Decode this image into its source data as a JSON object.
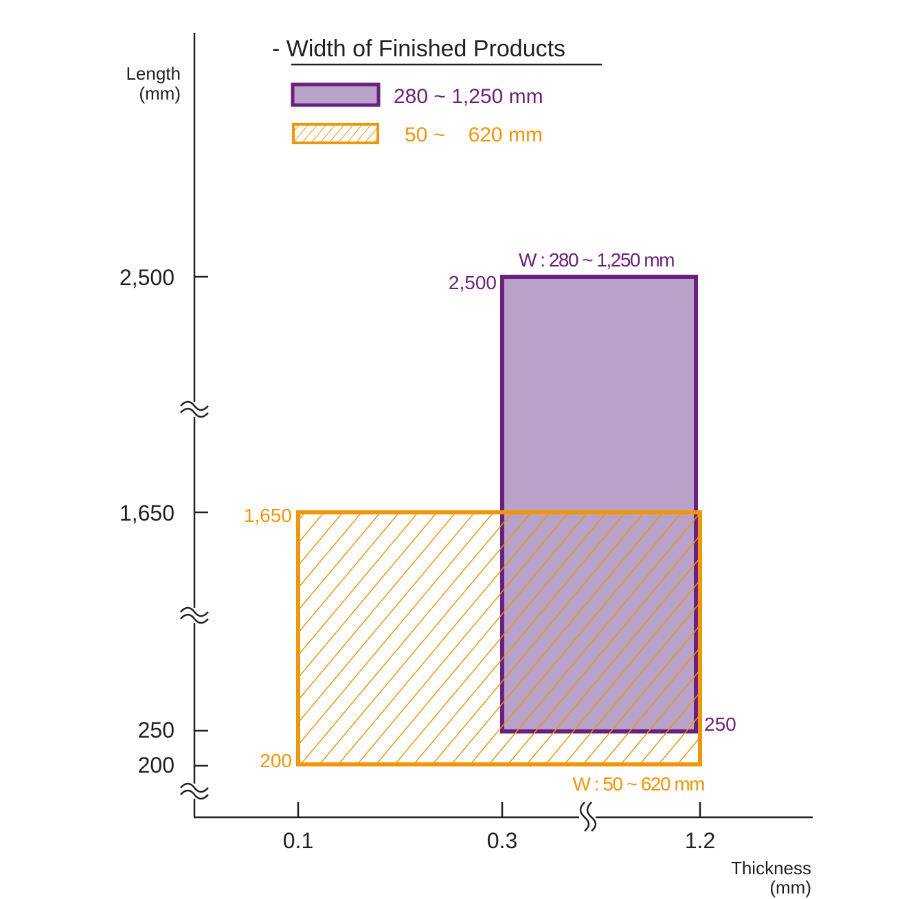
{
  "chart_data": {
    "type": "area",
    "title": "- Width of Finished Products",
    "xlabel": [
      "Thickness",
      "(mm)"
    ],
    "ylabel": [
      "Length",
      "(mm)"
    ],
    "x_ticks": [
      "0.1",
      "0.3",
      "1.2"
    ],
    "y_ticks": [
      "2,500",
      "1,650",
      "250",
      "200"
    ],
    "axis_breaks": "both axes broken (wavy break marks)",
    "legend": {
      "placement": "top",
      "entries": [
        {
          "label": "280 ~ 1,250 mm",
          "style": "solid-fill",
          "color": "#6b1f7e",
          "fill": "#b8a2ca"
        },
        {
          "label": "50 ~    620 mm",
          "style": "hatched",
          "color": "#f0960a"
        }
      ]
    },
    "series": [
      {
        "name": "280 ~ 1,250 mm",
        "thickness_range": [
          0.3,
          1.2
        ],
        "length_range": [
          250,
          2500
        ],
        "label": "W : 280 ~ 1,250 mm",
        "corner_labels": {
          "top": "2,500",
          "bottom": "250"
        }
      },
      {
        "name": "50 ~ 620 mm",
        "thickness_range": [
          0.1,
          1.2
        ],
        "length_range": [
          200,
          1650
        ],
        "label": "W : 50 ~ 620 mm",
        "corner_labels": {
          "top": "1,650",
          "bottom": "200"
        }
      }
    ]
  }
}
